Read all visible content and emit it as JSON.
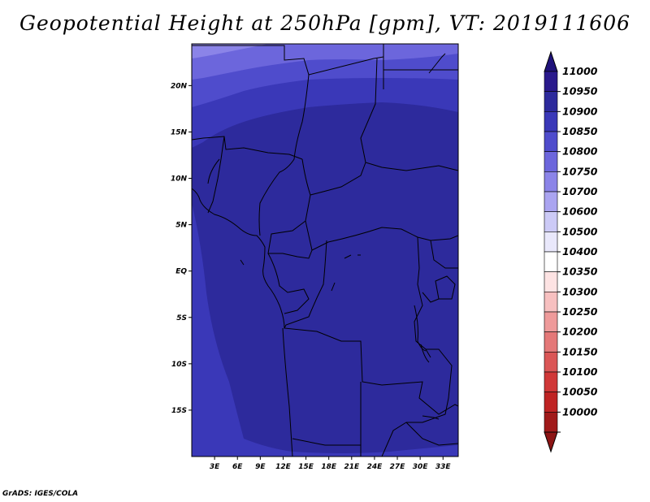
{
  "title": "Geopotential Height at 250hPa [gpm], VT: 2019111606",
  "credit": "GrADS: IGES/COLA",
  "map": {
    "lon_range": [
      0,
      35
    ],
    "lat_range": [
      -20,
      24.5
    ],
    "lat_ticks": [
      {
        "value": 20,
        "label": "20N"
      },
      {
        "value": 15,
        "label": "15N"
      },
      {
        "value": 10,
        "label": "10N"
      },
      {
        "value": 5,
        "label": "5N"
      },
      {
        "value": 0,
        "label": "EQ"
      },
      {
        "value": -5,
        "label": "5S"
      },
      {
        "value": -10,
        "label": "10S"
      },
      {
        "value": -15,
        "label": "15S"
      }
    ],
    "lon_ticks": [
      {
        "value": 3,
        "label": "3E"
      },
      {
        "value": 6,
        "label": "6E"
      },
      {
        "value": 9,
        "label": "9E"
      },
      {
        "value": 12,
        "label": "12E"
      },
      {
        "value": 15,
        "label": "15E"
      },
      {
        "value": 18,
        "label": "18E"
      },
      {
        "value": 21,
        "label": "21E"
      },
      {
        "value": 24,
        "label": "24E"
      },
      {
        "value": 27,
        "label": "27E"
      },
      {
        "value": 30,
        "label": "30E"
      },
      {
        "value": 33,
        "label": "33E"
      }
    ]
  },
  "colorbar": {
    "levels": [
      {
        "label": "11000",
        "color": "#2a1a8c"
      },
      {
        "label": "10950",
        "color": "#2d2a9c"
      },
      {
        "label": "10900",
        "color": "#3a38b8"
      },
      {
        "label": "10850",
        "color": "#4f4ccc"
      },
      {
        "label": "10800",
        "color": "#6c66dc"
      },
      {
        "label": "10750",
        "color": "#8b84e8"
      },
      {
        "label": "10700",
        "color": "#aaa4f0"
      },
      {
        "label": "10600",
        "color": "#cccaf6"
      },
      {
        "label": "10500",
        "color": "#e9e8fb"
      },
      {
        "label": "10400",
        "color": "#ffffff"
      },
      {
        "label": "10350",
        "color": "#fde3e3"
      },
      {
        "label": "10300",
        "color": "#f7c0c0"
      },
      {
        "label": "10250",
        "color": "#ee9a9a"
      },
      {
        "label": "10200",
        "color": "#e47878"
      },
      {
        "label": "10150",
        "color": "#da5656"
      },
      {
        "label": "10100",
        "color": "#d03838"
      },
      {
        "label": "10050",
        "color": "#bf2424"
      },
      {
        "label": "10000",
        "color": "#a01a1a"
      }
    ],
    "top_arrow_color": "#1f127a",
    "bottom_arrow_color": "#8c1414"
  },
  "field_colors": {
    "c10950": "#2d2a9c",
    "c10900": "#3a38b8",
    "c10850": "#4f4ccc",
    "c10800": "#6c66dc",
    "c10750": "#8b84e8"
  }
}
